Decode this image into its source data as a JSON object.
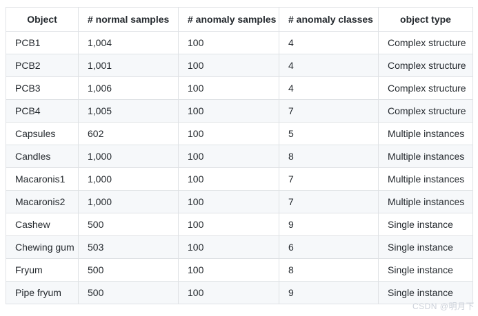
{
  "chart_data": {
    "type": "table",
    "title": "",
    "columns": [
      "Object",
      "# normal samples",
      "# anomaly samples",
      "# anomaly classes",
      "object type"
    ],
    "rows": [
      [
        "PCB1",
        "1,004",
        "100",
        "4",
        "Complex structure"
      ],
      [
        "PCB2",
        "1,001",
        "100",
        "4",
        "Complex structure"
      ],
      [
        "PCB3",
        "1,006",
        "100",
        "4",
        "Complex structure"
      ],
      [
        "PCB4",
        "1,005",
        "100",
        "7",
        "Complex structure"
      ],
      [
        "Capsules",
        "602",
        "100",
        "5",
        "Multiple instances"
      ],
      [
        "Candles",
        "1,000",
        "100",
        "8",
        "Multiple instances"
      ],
      [
        "Macaronis1",
        "1,000",
        "100",
        "7",
        "Multiple instances"
      ],
      [
        "Macaronis2",
        "1,000",
        "100",
        "7",
        "Multiple instances"
      ],
      [
        "Cashew",
        "500",
        "100",
        "9",
        "Single instance"
      ],
      [
        "Chewing gum",
        "503",
        "100",
        "6",
        "Single instance"
      ],
      [
        "Fryum",
        "500",
        "100",
        "8",
        "Single instance"
      ],
      [
        "Pipe fryum",
        "500",
        "100",
        "9",
        "Single instance"
      ]
    ],
    "layout": {
      "header_align": "center",
      "cell_align": "left",
      "grid": true,
      "striped_rows": true
    }
  },
  "watermark": {
    "text": "CSDN @明月下"
  },
  "colors": {
    "border": "#dfe2e5",
    "alt_row": "#f6f8fa",
    "text": "#24292e",
    "watermark": "#ccd1da",
    "background": "#ffffff"
  }
}
